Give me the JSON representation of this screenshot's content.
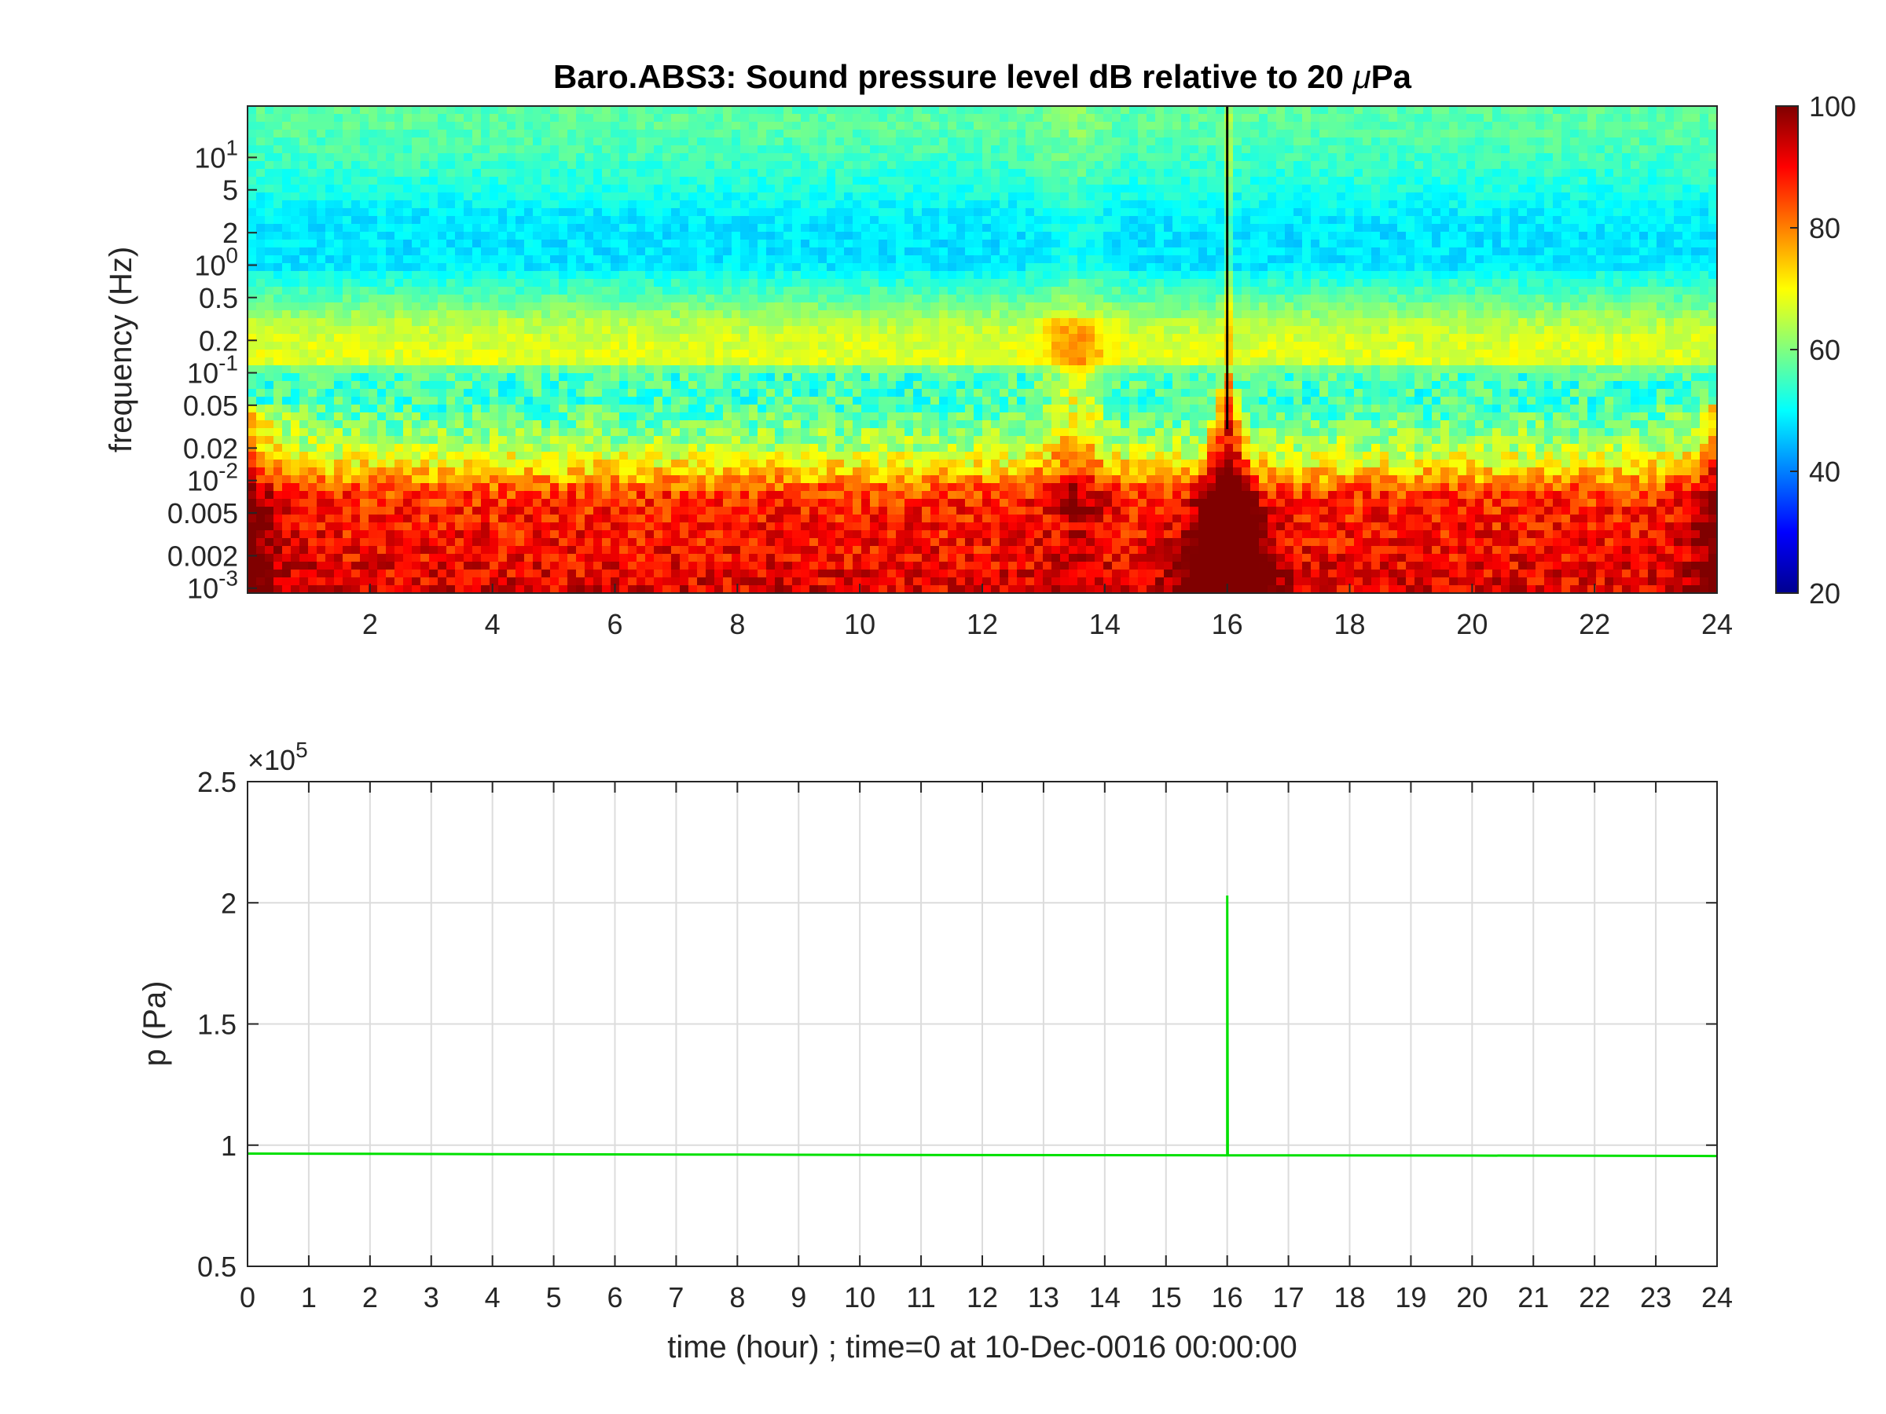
{
  "chart_data": [
    {
      "type": "heatmap",
      "title": "Baro.ABS3: Sound pressure level dB relative to 20 μPa",
      "ylabel": "frequency (Hz)",
      "xlabel": "",
      "y_scale": "log",
      "xlim": [
        0,
        24
      ],
      "ylim": [
        0.0009,
        30
      ],
      "x_ticks": [
        2,
        4,
        6,
        8,
        10,
        12,
        14,
        16,
        18,
        20,
        22,
        24
      ],
      "x_tick_labels": [
        "2",
        "4",
        "6",
        "8",
        "10",
        "12",
        "14",
        "16",
        "18",
        "20",
        "22",
        "24"
      ],
      "y_ticks": [
        0.001,
        0.002,
        0.005,
        0.01,
        0.02,
        0.05,
        0.1,
        0.2,
        0.5,
        1,
        2,
        5,
        10
      ],
      "y_tick_labels": [
        "10^-3",
        "0.002",
        "0.005",
        "10^-2",
        "0.02",
        "0.05",
        "10^-1",
        "0.2",
        "0.5",
        "10^0",
        "2",
        "5",
        "10^1"
      ],
      "colorbar": {
        "colormap": "jet",
        "range": [
          20,
          100
        ],
        "ticks": [
          20,
          40,
          60,
          80,
          100
        ],
        "tick_labels": [
          "20",
          "40",
          "60",
          "80",
          "100"
        ]
      },
      "profile": {
        "description_levels_dB_by_frequency_Hz": [
          [
            0.001,
            92
          ],
          [
            0.002,
            90
          ],
          [
            0.005,
            88
          ],
          [
            0.008,
            85
          ],
          [
            0.01,
            78
          ],
          [
            0.02,
            64
          ],
          [
            0.05,
            55
          ],
          [
            0.1,
            55
          ],
          [
            0.13,
            68
          ],
          [
            0.2,
            67
          ],
          [
            0.3,
            64
          ],
          [
            0.5,
            57
          ],
          [
            0.8,
            52
          ],
          [
            1,
            48
          ],
          [
            2,
            48
          ],
          [
            3,
            49
          ],
          [
            5,
            52
          ],
          [
            10,
            55
          ],
          [
            20,
            57
          ]
        ],
        "events_hour": [
          16.0,
          13.5,
          0.2,
          23.9
        ]
      }
    },
    {
      "type": "line",
      "title": "",
      "xlabel": "time (hour) ; time=0 at 10-Dec-0016 00:00:00",
      "ylabel": "p (Pa)",
      "y_exponent_label": "×10^5",
      "xlim": [
        0,
        24
      ],
      "ylim": [
        0.5,
        2.5
      ],
      "x_ticks": [
        0,
        1,
        2,
        3,
        4,
        5,
        6,
        7,
        8,
        9,
        10,
        11,
        12,
        13,
        14,
        15,
        16,
        17,
        18,
        19,
        20,
        21,
        22,
        23,
        24
      ],
      "x_tick_labels": [
        "0",
        "1",
        "2",
        "3",
        "4",
        "5",
        "6",
        "7",
        "8",
        "9",
        "10",
        "11",
        "12",
        "13",
        "14",
        "15",
        "16",
        "17",
        "18",
        "19",
        "20",
        "21",
        "22",
        "23",
        "24"
      ],
      "y_ticks": [
        0.5,
        1,
        1.5,
        2,
        2.5
      ],
      "y_tick_labels": [
        "0.5",
        "1",
        "1.5",
        "2",
        "2.5"
      ],
      "grid": true,
      "series": [
        {
          "color": "#00e000",
          "x": [
            0,
            4,
            8,
            12,
            15.99,
            16.0,
            16.0,
            16.01,
            20,
            24
          ],
          "y": [
            0.965,
            0.963,
            0.961,
            0.959,
            0.958,
            0.958,
            2.03,
            0.958,
            0.957,
            0.955
          ]
        }
      ]
    }
  ]
}
